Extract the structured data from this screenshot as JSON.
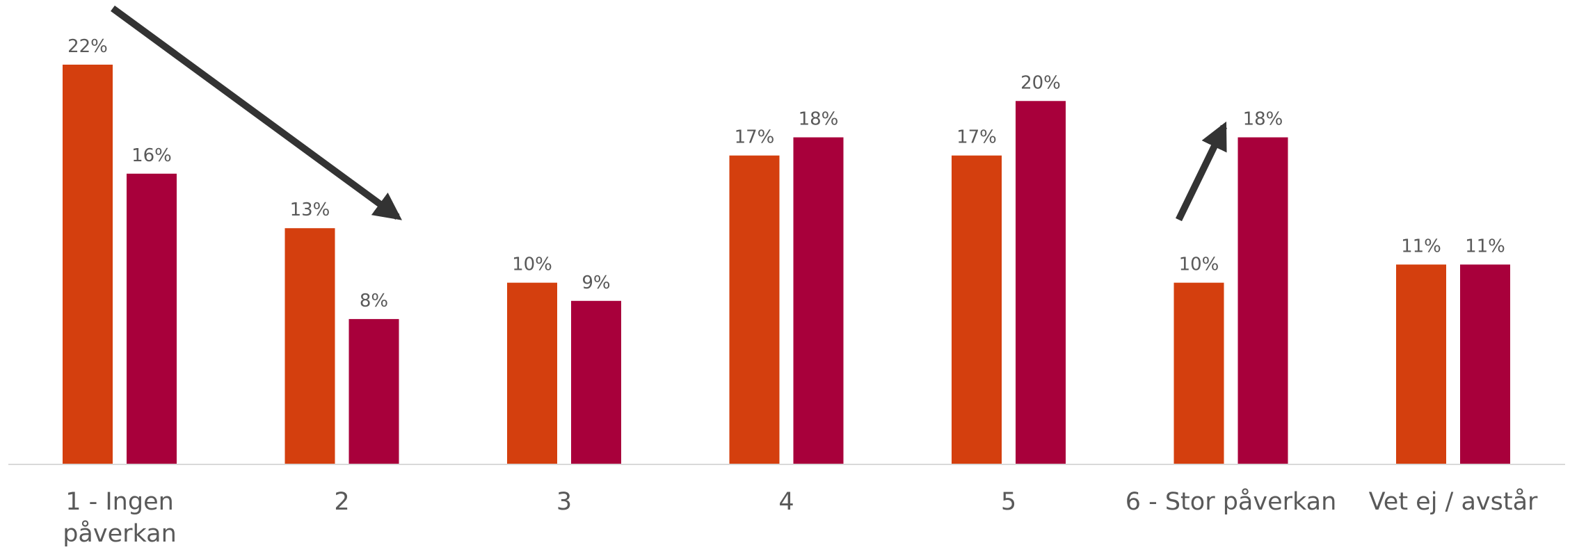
{
  "chart_data": {
    "type": "bar",
    "categories": [
      [
        "1 - Ingen",
        "påverkan"
      ],
      [
        "2"
      ],
      [
        "3"
      ],
      [
        "4"
      ],
      [
        "5"
      ],
      [
        "6 - Stor påverkan"
      ],
      [
        "Vet ej / avstår"
      ]
    ],
    "series": [
      {
        "values": [
          22,
          13,
          10,
          17,
          17,
          10,
          11
        ],
        "labels": [
          "22%",
          "13%",
          "10%",
          "17%",
          "17%",
          "10%",
          "11%"
        ],
        "color": "#D43F0E"
      },
      {
        "values": [
          16,
          8,
          9,
          18,
          20,
          18,
          11
        ],
        "labels": [
          "16%",
          "8%",
          "9%",
          "18%",
          "20%",
          "18%",
          "11%"
        ],
        "color": "#A8003B"
      }
    ],
    "ylim": [
      0,
      22
    ],
    "grid": false,
    "axis_color": "#D9D9D9",
    "annotations": [
      {
        "type": "arrow",
        "from_category": 0,
        "to_category": 1,
        "direction": "down",
        "color": "#333333"
      },
      {
        "type": "arrow",
        "category": 5,
        "direction": "up",
        "color": "#333333"
      }
    ]
  }
}
